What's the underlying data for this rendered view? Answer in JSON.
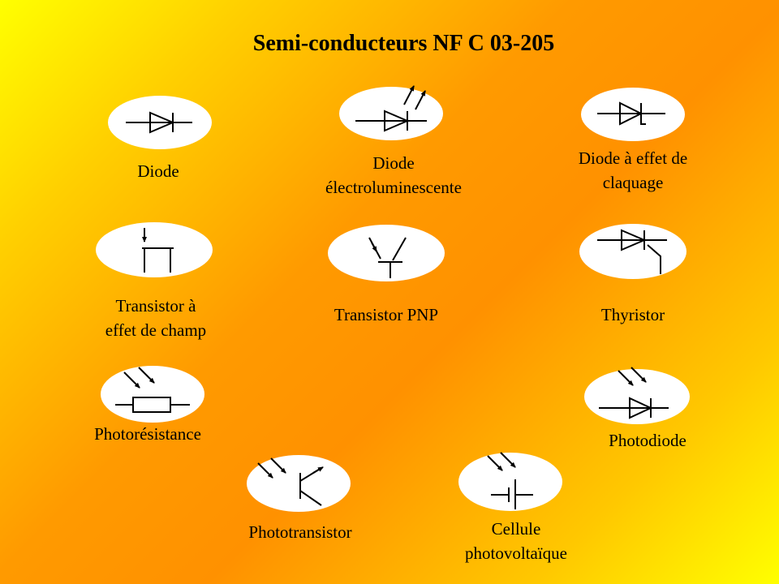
{
  "title": "Semi-conducteurs NF C 03-205",
  "symbols": [
    {
      "icon": "diode-symbol-icon",
      "label_lines": [
        "Diode"
      ]
    },
    {
      "icon": "led-symbol-icon",
      "label_lines": [
        "Diode",
        "électroluminescente"
      ]
    },
    {
      "icon": "zener-diode-symbol-icon",
      "label_lines": [
        "Diode à effet de",
        "claquage"
      ]
    },
    {
      "icon": "fet-symbol-icon",
      "label_lines": [
        "Transistor à",
        "effet de champ"
      ]
    },
    {
      "icon": "pnp-transistor-symbol-icon",
      "label_lines": [
        "Transistor PNP"
      ]
    },
    {
      "icon": "thyristor-symbol-icon",
      "label_lines": [
        "Thyristor"
      ]
    },
    {
      "icon": "photoresistor-symbol-icon",
      "label_lines": [
        "Photorésistance"
      ]
    },
    {
      "icon": "photodiode-symbol-icon",
      "label_lines": [
        "Photodiode"
      ]
    },
    {
      "icon": "phototransistor-symbol-icon",
      "label_lines": [
        "Phototransistor"
      ]
    },
    {
      "icon": "photovoltaic-cell-symbol-icon",
      "label_lines": [
        "Cellule",
        "photovoltaïque"
      ]
    }
  ]
}
